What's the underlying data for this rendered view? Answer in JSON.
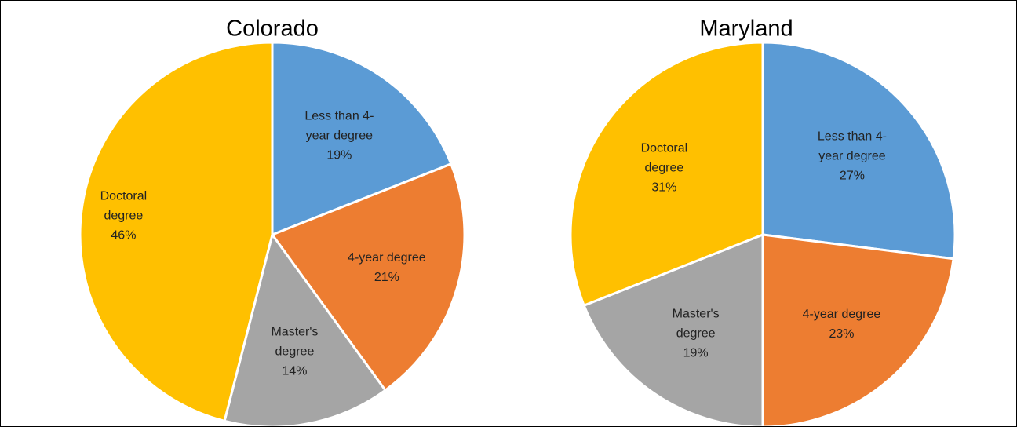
{
  "chart_data": [
    {
      "type": "pie",
      "title": "Colorado",
      "categories": [
        "Less than 4-year degree",
        "4-year degree",
        "Master's degree",
        "Doctoral degree"
      ],
      "values": [
        19,
        21,
        14,
        46
      ],
      "value_labels": [
        "19%",
        "21%",
        "14%",
        "46%"
      ],
      "colors": [
        "#5b9bd5",
        "#ed7d31",
        "#a5a5a5",
        "#ffc000"
      ]
    },
    {
      "type": "pie",
      "title": "Maryland",
      "categories": [
        "Less than 4-year degree",
        "4-year degree",
        "Master's degree",
        "Doctoral degree"
      ],
      "values": [
        27,
        23,
        19,
        31
      ],
      "value_labels": [
        "27%",
        "23%",
        "19%",
        "31%"
      ],
      "colors": [
        "#5b9bd5",
        "#ed7d31",
        "#a5a5a5",
        "#ffc000"
      ]
    }
  ]
}
